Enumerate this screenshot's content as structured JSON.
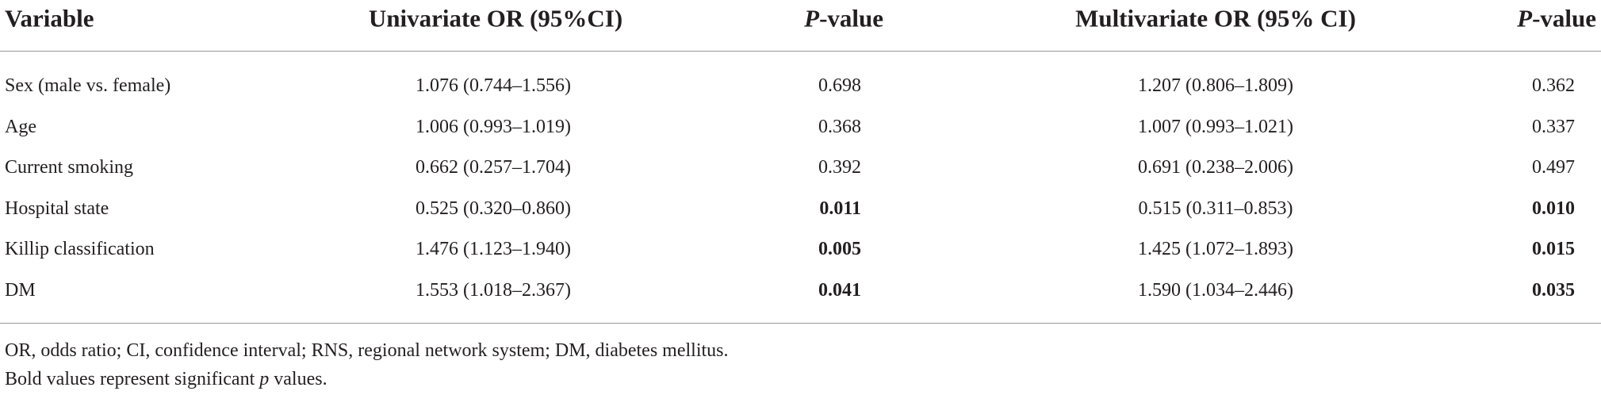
{
  "table": {
    "header": [
      {
        "text": "Variable"
      },
      {
        "text": "Univariate OR (95%CI)"
      },
      {
        "italic": "P",
        "text": "-value"
      },
      {
        "text": "Multivariate OR (95% CI)"
      },
      {
        "italic": "P",
        "text": "-value"
      }
    ],
    "rows": [
      {
        "cells": [
          "Sex (male vs. female)",
          "1.076 (0.744–1.556)",
          "0.698",
          "1.207 (0.806–1.809)",
          "0.362"
        ],
        "bold": []
      },
      {
        "cells": [
          "Age",
          "1.006 (0.993–1.019)",
          "0.368",
          "1.007 (0.993–1.021)",
          "0.337"
        ],
        "bold": []
      },
      {
        "cells": [
          "Current smoking",
          "0.662 (0.257–1.704)",
          "0.392",
          "0.691 (0.238–2.006)",
          "0.497"
        ],
        "bold": []
      },
      {
        "cells": [
          "Hospital state",
          "0.525 (0.320–0.860)",
          "0.011",
          "0.515 (0.311–0.853)",
          "0.010"
        ],
        "bold": [
          2,
          4
        ]
      },
      {
        "cells": [
          "Killip classification",
          "1.476 (1.123–1.940)",
          "0.005",
          "1.425 (1.072–1.893)",
          "0.015"
        ],
        "bold": [
          2,
          4
        ]
      },
      {
        "cells": [
          "DM",
          "1.553 (1.018–2.367)",
          "0.041",
          "1.590 (1.034–2.446)",
          "0.035"
        ],
        "bold": [
          2,
          4
        ]
      }
    ]
  },
  "footnotes": [
    {
      "parts": [
        {
          "text": "OR, odds ratio; CI, confidence interval; RNS, regional network system; DM, diabetes mellitus."
        }
      ]
    },
    {
      "parts": [
        {
          "text": "Bold values represent significant "
        },
        {
          "text": "p",
          "italic": true
        },
        {
          "text": " values."
        }
      ]
    }
  ]
}
